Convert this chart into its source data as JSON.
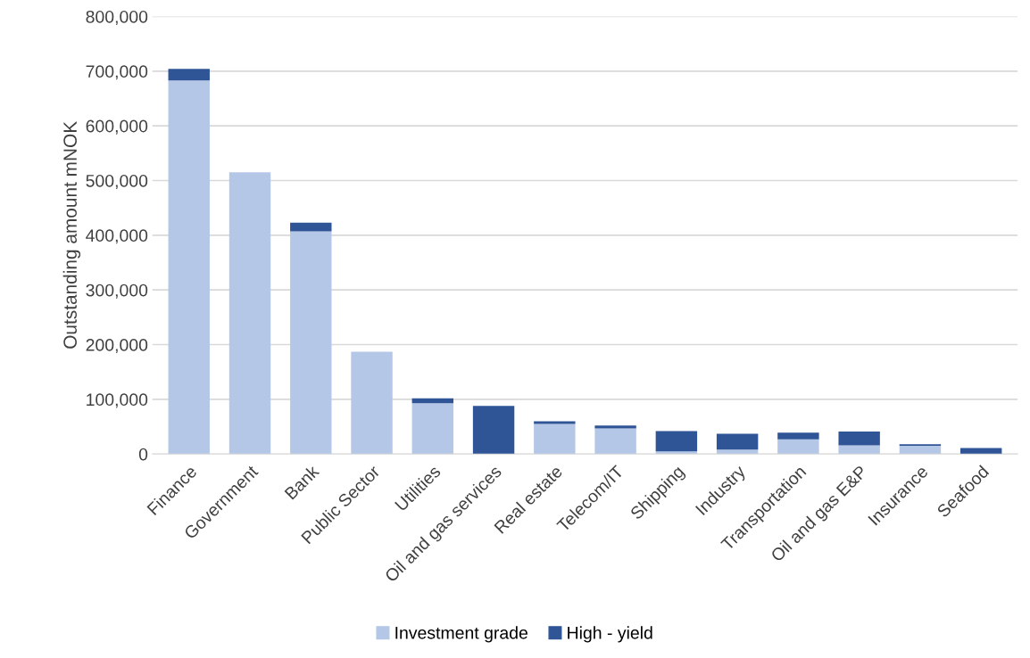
{
  "chart_data": {
    "type": "bar",
    "stacked": true,
    "ylabel": "Outstanding amount mNOK",
    "categories": [
      "Finance",
      "Government",
      "Bank",
      "Public Sector",
      "Utilities",
      "Oil and gas services",
      "Real estate",
      "Telecom/IT",
      "Shipping",
      "Industry",
      "Transportation",
      "Oil and gas E&P",
      "Insurance",
      "Seafood"
    ],
    "series": [
      {
        "name": "Investment grade",
        "color": "#b4c7e7",
        "values": [
          683000,
          515000,
          407000,
          187000,
          93000,
          0,
          55000,
          47000,
          5000,
          8000,
          27000,
          16000,
          15000,
          0
        ]
      },
      {
        "name": "High - yield",
        "color": "#2f5597",
        "values": [
          21000,
          0,
          16000,
          0,
          9000,
          88000,
          5000,
          5000,
          37000,
          29000,
          12000,
          25000,
          3000,
          11000
        ]
      }
    ],
    "ylim": [
      0,
      800000
    ],
    "yticks": [
      {
        "value": 0,
        "label": "0"
      },
      {
        "value": 100000,
        "label": "100,000"
      },
      {
        "value": 200000,
        "label": "200,000"
      },
      {
        "value": 300000,
        "label": "300,000"
      },
      {
        "value": 400000,
        "label": "400,000"
      },
      {
        "value": 500000,
        "label": "500,000"
      },
      {
        "value": 600000,
        "label": "600,000"
      },
      {
        "value": 700000,
        "label": "700,000"
      },
      {
        "value": 800000,
        "label": "800,000"
      }
    ],
    "grid": "y",
    "legend": "bottom"
  }
}
